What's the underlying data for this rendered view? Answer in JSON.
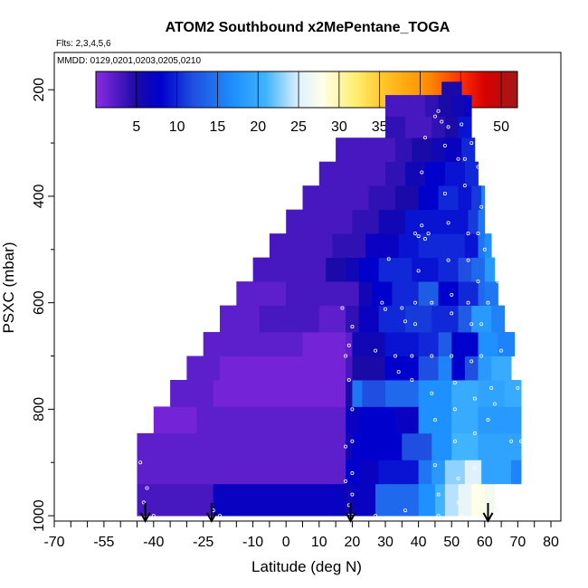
{
  "chart_data": {
    "type": "heatmap",
    "title": "ATOM2 Southbound x2MePentane_TOGA",
    "flights_note": "Flts: 2,3,4,5,6",
    "dates_note": "MMDD: 0129,0201,0203,0205,0210",
    "xlabel": "Latitude (deg N)",
    "ylabel": "PSXC (mbar)",
    "xlim": [
      -70,
      83
    ],
    "ylim": [
      1010,
      130
    ],
    "x_ticks": [
      "-70",
      "-55",
      "-40",
      "-25",
      "-10",
      "0",
      "10",
      "20",
      "30",
      "40",
      "50",
      "60",
      "70",
      "80"
    ],
    "x_tick_values": [
      -70,
      -55,
      -40,
      -25,
      -10,
      0,
      10,
      20,
      30,
      40,
      50,
      60,
      70,
      80
    ],
    "y_ticks": [
      "200",
      "400",
      "600",
      "800",
      "1000"
    ],
    "y_tick_values": [
      200,
      400,
      600,
      800,
      1000
    ],
    "colorbar": {
      "min": 0,
      "max": 52,
      "tick_labels": [
        "5",
        "10",
        "15",
        "20",
        "25",
        "30",
        "35",
        "40",
        "45",
        "50"
      ],
      "tick_values": [
        5,
        10,
        15,
        20,
        25,
        30,
        35,
        40,
        45,
        50
      ]
    },
    "colormap_stops": [
      {
        "v": 0,
        "c": "#8a2be2"
      },
      {
        "v": 5,
        "c": "#1a0aa8"
      },
      {
        "v": 8,
        "c": "#0000cd"
      },
      {
        "v": 12,
        "c": "#1f4fe0"
      },
      {
        "v": 17,
        "c": "#1e90ff"
      },
      {
        "v": 21,
        "c": "#41b4ff"
      },
      {
        "v": 25,
        "c": "#dff0ff"
      },
      {
        "v": 28,
        "c": "#ffffe8"
      },
      {
        "v": 32,
        "c": "#ffee70"
      },
      {
        "v": 36,
        "c": "#ffc020"
      },
      {
        "v": 41,
        "c": "#ff8c00"
      },
      {
        "v": 45,
        "c": "#ff3000"
      },
      {
        "v": 48,
        "c": "#d80000"
      },
      {
        "v": 52,
        "c": "#a01818"
      }
    ],
    "flight_markers_lat": [
      -42.5,
      -22.5,
      19.5,
      61
    ],
    "pressure_bands": [
      {
        "p_top": 940,
        "p_bot": 1000,
        "segments": [
          [
            -45,
            -22,
            3
          ],
          [
            -22,
            18,
            7
          ],
          [
            18,
            20,
            6
          ],
          [
            20,
            27,
            7
          ],
          [
            27,
            40,
            14
          ],
          [
            40,
            45,
            17
          ],
          [
            45,
            48,
            21
          ],
          [
            48,
            52,
            24
          ],
          [
            52,
            56,
            26
          ],
          [
            56,
            60,
            28
          ],
          [
            60,
            63,
            27
          ]
        ]
      },
      {
        "p_top": 895,
        "p_bot": 940,
        "segments": [
          [
            -45,
            -36,
            2
          ],
          [
            -36,
            18,
            2
          ],
          [
            18,
            22,
            8
          ],
          [
            22,
            28,
            7
          ],
          [
            28,
            40,
            9
          ],
          [
            40,
            44,
            15
          ],
          [
            44,
            48,
            18
          ],
          [
            48,
            54,
            23
          ],
          [
            54,
            59,
            25
          ],
          [
            59,
            68,
            19
          ],
          [
            68,
            71,
            16
          ]
        ]
      },
      {
        "p_top": 845,
        "p_bot": 895,
        "segments": [
          [
            -45,
            -34,
            2
          ],
          [
            -34,
            -10,
            2
          ],
          [
            -10,
            18,
            2
          ],
          [
            18,
            20,
            6
          ],
          [
            20,
            35,
            8
          ],
          [
            35,
            44,
            12
          ],
          [
            44,
            50,
            17
          ],
          [
            50,
            58,
            21
          ],
          [
            58,
            64,
            19
          ],
          [
            64,
            71,
            19
          ]
        ]
      },
      {
        "p_top": 795,
        "p_bot": 845,
        "segments": [
          [
            -40,
            -27,
            1
          ],
          [
            -27,
            8,
            2
          ],
          [
            8,
            18,
            2
          ],
          [
            18,
            22,
            7
          ],
          [
            22,
            33,
            8
          ],
          [
            33,
            40,
            7
          ],
          [
            40,
            50,
            17
          ],
          [
            50,
            58,
            20
          ],
          [
            58,
            66,
            18
          ],
          [
            66,
            71,
            18
          ]
        ]
      },
      {
        "p_top": 745,
        "p_bot": 795,
        "segments": [
          [
            -35,
            -22,
            2
          ],
          [
            -22,
            0,
            1
          ],
          [
            0,
            18,
            1
          ],
          [
            18,
            20,
            5
          ],
          [
            20,
            23,
            15
          ],
          [
            23,
            30,
            12
          ],
          [
            30,
            40,
            14
          ],
          [
            40,
            50,
            17
          ],
          [
            50,
            58,
            20
          ],
          [
            58,
            66,
            19
          ],
          [
            66,
            71,
            20
          ]
        ]
      },
      {
        "p_top": 700,
        "p_bot": 745,
        "segments": [
          [
            -30,
            -20,
            2
          ],
          [
            -20,
            7,
            1
          ],
          [
            7,
            18,
            1
          ],
          [
            18,
            20,
            3
          ],
          [
            20,
            30,
            5
          ],
          [
            30,
            40,
            8
          ],
          [
            40,
            46,
            12
          ],
          [
            46,
            50,
            16
          ],
          [
            50,
            54,
            8
          ],
          [
            54,
            58,
            12
          ],
          [
            58,
            62,
            18
          ],
          [
            62,
            68,
            20
          ]
        ]
      },
      {
        "p_top": 655,
        "p_bot": 700,
        "segments": [
          [
            -25,
            -12,
            2
          ],
          [
            -12,
            5,
            2
          ],
          [
            5,
            18,
            1
          ],
          [
            18,
            20,
            2
          ],
          [
            20,
            30,
            6
          ],
          [
            30,
            40,
            9
          ],
          [
            40,
            46,
            10
          ],
          [
            46,
            50,
            13
          ],
          [
            50,
            58,
            8
          ],
          [
            58,
            64,
            17
          ],
          [
            64,
            69,
            16
          ]
        ]
      },
      {
        "p_top": 605,
        "p_bot": 655,
        "segments": [
          [
            -20,
            -8,
            2
          ],
          [
            -8,
            10,
            3
          ],
          [
            10,
            18,
            2
          ],
          [
            18,
            22,
            4
          ],
          [
            22,
            28,
            7
          ],
          [
            28,
            36,
            10
          ],
          [
            36,
            44,
            11
          ],
          [
            44,
            52,
            10
          ],
          [
            52,
            56,
            13
          ],
          [
            56,
            62,
            18
          ],
          [
            62,
            66,
            16
          ]
        ]
      },
      {
        "p_top": 560,
        "p_bot": 605,
        "segments": [
          [
            -15,
            0,
            2
          ],
          [
            0,
            15,
            3
          ],
          [
            15,
            22,
            3
          ],
          [
            22,
            26,
            6
          ],
          [
            26,
            32,
            8
          ],
          [
            32,
            40,
            10
          ],
          [
            40,
            46,
            13
          ],
          [
            46,
            52,
            8
          ],
          [
            52,
            58,
            10
          ],
          [
            58,
            60,
            14
          ],
          [
            60,
            64,
            15
          ]
        ]
      },
      {
        "p_top": 515,
        "p_bot": 560,
        "segments": [
          [
            -10,
            0,
            3
          ],
          [
            0,
            12,
            3
          ],
          [
            12,
            18,
            5
          ],
          [
            18,
            22,
            6
          ],
          [
            22,
            28,
            8
          ],
          [
            28,
            38,
            10
          ],
          [
            38,
            46,
            9
          ],
          [
            46,
            52,
            10
          ],
          [
            52,
            56,
            12
          ],
          [
            56,
            60,
            14
          ],
          [
            60,
            63,
            18
          ]
        ]
      },
      {
        "p_top": 470,
        "p_bot": 515,
        "segments": [
          [
            -5,
            4,
            3
          ],
          [
            4,
            14,
            3
          ],
          [
            14,
            24,
            4
          ],
          [
            24,
            34,
            7
          ],
          [
            34,
            40,
            9
          ],
          [
            40,
            48,
            10
          ],
          [
            48,
            54,
            10
          ],
          [
            54,
            58,
            9
          ],
          [
            58,
            60,
            15
          ],
          [
            60,
            62,
            17
          ]
        ]
      },
      {
        "p_top": 425,
        "p_bot": 470,
        "segments": [
          [
            0,
            10,
            3
          ],
          [
            10,
            20,
            3
          ],
          [
            20,
            28,
            4
          ],
          [
            28,
            36,
            6
          ],
          [
            36,
            44,
            9
          ],
          [
            44,
            50,
            9
          ],
          [
            50,
            55,
            9
          ],
          [
            55,
            58,
            11
          ],
          [
            58,
            60,
            15
          ]
        ]
      },
      {
        "p_top": 380,
        "p_bot": 425,
        "segments": [
          [
            5,
            15,
            3
          ],
          [
            15,
            25,
            3
          ],
          [
            25,
            33,
            4
          ],
          [
            33,
            40,
            5
          ],
          [
            40,
            46,
            8
          ],
          [
            46,
            52,
            10
          ],
          [
            52,
            56,
            9
          ],
          [
            56,
            59,
            11
          ],
          [
            59,
            60,
            16
          ]
        ]
      },
      {
        "p_top": 335,
        "p_bot": 380,
        "segments": [
          [
            10,
            20,
            3
          ],
          [
            20,
            30,
            3
          ],
          [
            30,
            36,
            4
          ],
          [
            36,
            42,
            6
          ],
          [
            42,
            48,
            8
          ],
          [
            48,
            54,
            9
          ],
          [
            54,
            58,
            10
          ]
        ]
      },
      {
        "p_top": 290,
        "p_bot": 335,
        "segments": [
          [
            15,
            25,
            3
          ],
          [
            25,
            33,
            3
          ],
          [
            33,
            38,
            4
          ],
          [
            38,
            44,
            5
          ],
          [
            44,
            48,
            6
          ],
          [
            48,
            53,
            7
          ],
          [
            53,
            57,
            10
          ]
        ]
      },
      {
        "p_top": 250,
        "p_bot": 290,
        "segments": [
          [
            30,
            36,
            4
          ],
          [
            36,
            40,
            3
          ],
          [
            40,
            44,
            3
          ],
          [
            44,
            48,
            4
          ],
          [
            48,
            52,
            5
          ],
          [
            52,
            56,
            9
          ]
        ]
      },
      {
        "p_top": 210,
        "p_bot": 250,
        "segments": [
          [
            30,
            36,
            3
          ],
          [
            36,
            42,
            3
          ],
          [
            42,
            46,
            4
          ],
          [
            46,
            50,
            5
          ],
          [
            50,
            54,
            6
          ],
          [
            54,
            56,
            7
          ]
        ]
      },
      {
        "p_top": 185,
        "p_bot": 210,
        "segments": [
          [
            47,
            53,
            5
          ]
        ]
      }
    ],
    "observation_points": [
      [
        -44,
        900
      ],
      [
        -42,
        948
      ],
      [
        -40,
        1000
      ],
      [
        -43,
        975
      ],
      [
        -22,
        990
      ],
      [
        -20,
        1000
      ],
      [
        18,
        870
      ],
      [
        18,
        935
      ],
      [
        19,
        980
      ],
      [
        19,
        1000
      ],
      [
        20,
        1000
      ],
      [
        18,
        700
      ],
      [
        19,
        680
      ],
      [
        17,
        610
      ],
      [
        20,
        645
      ],
      [
        19,
        745
      ],
      [
        20,
        800
      ],
      [
        20,
        860
      ],
      [
        20,
        920
      ],
      [
        20,
        960
      ],
      [
        27,
        690
      ],
      [
        27,
        1000
      ],
      [
        29,
        600
      ],
      [
        30,
        612
      ],
      [
        31,
        518
      ],
      [
        33,
        700
      ],
      [
        34,
        730
      ],
      [
        36,
        990
      ],
      [
        38,
        700
      ],
      [
        38,
        745
      ],
      [
        39,
        640
      ],
      [
        39,
        600
      ],
      [
        40,
        540
      ],
      [
        40,
        475
      ],
      [
        41,
        355
      ],
      [
        42,
        290
      ],
      [
        43,
        470
      ],
      [
        44,
        600
      ],
      [
        44,
        700
      ],
      [
        44,
        770
      ],
      [
        45,
        820
      ],
      [
        45,
        905
      ],
      [
        46,
        960
      ],
      [
        46,
        1000
      ],
      [
        47,
        260
      ],
      [
        48,
        305
      ],
      [
        48,
        395
      ],
      [
        49,
        450
      ],
      [
        49,
        520
      ],
      [
        50,
        585
      ],
      [
        50,
        620
      ],
      [
        50,
        700
      ],
      [
        51,
        750
      ],
      [
        51,
        800
      ],
      [
        51,
        860
      ],
      [
        52,
        930
      ],
      [
        52,
        975
      ],
      [
        53,
        1000
      ],
      [
        53,
        265
      ],
      [
        54,
        330
      ],
      [
        54,
        380
      ],
      [
        55,
        470
      ],
      [
        55,
        520
      ],
      [
        55,
        600
      ],
      [
        56,
        640
      ],
      [
        56,
        710
      ],
      [
        57,
        780
      ],
      [
        57,
        845
      ],
      [
        57,
        910
      ],
      [
        58,
        470
      ],
      [
        58,
        560
      ],
      [
        59,
        420
      ],
      [
        59,
        640
      ],
      [
        59,
        700
      ],
      [
        60,
        360
      ],
      [
        60,
        500
      ],
      [
        61,
        600
      ],
      [
        61,
        820
      ],
      [
        62,
        760
      ],
      [
        63,
        790
      ],
      [
        64,
        560
      ],
      [
        65,
        690
      ],
      [
        66,
        520
      ],
      [
        68,
        860
      ],
      [
        70,
        760
      ],
      [
        71,
        860
      ],
      [
        39,
        470
      ],
      [
        41,
        455
      ],
      [
        42,
        480
      ],
      [
        45,
        250
      ],
      [
        46,
        240
      ],
      [
        49,
        270
      ],
      [
        52,
        330
      ],
      [
        56,
        300
      ],
      [
        58,
        345
      ],
      [
        35,
        610
      ],
      [
        36,
        635
      ]
    ]
  }
}
